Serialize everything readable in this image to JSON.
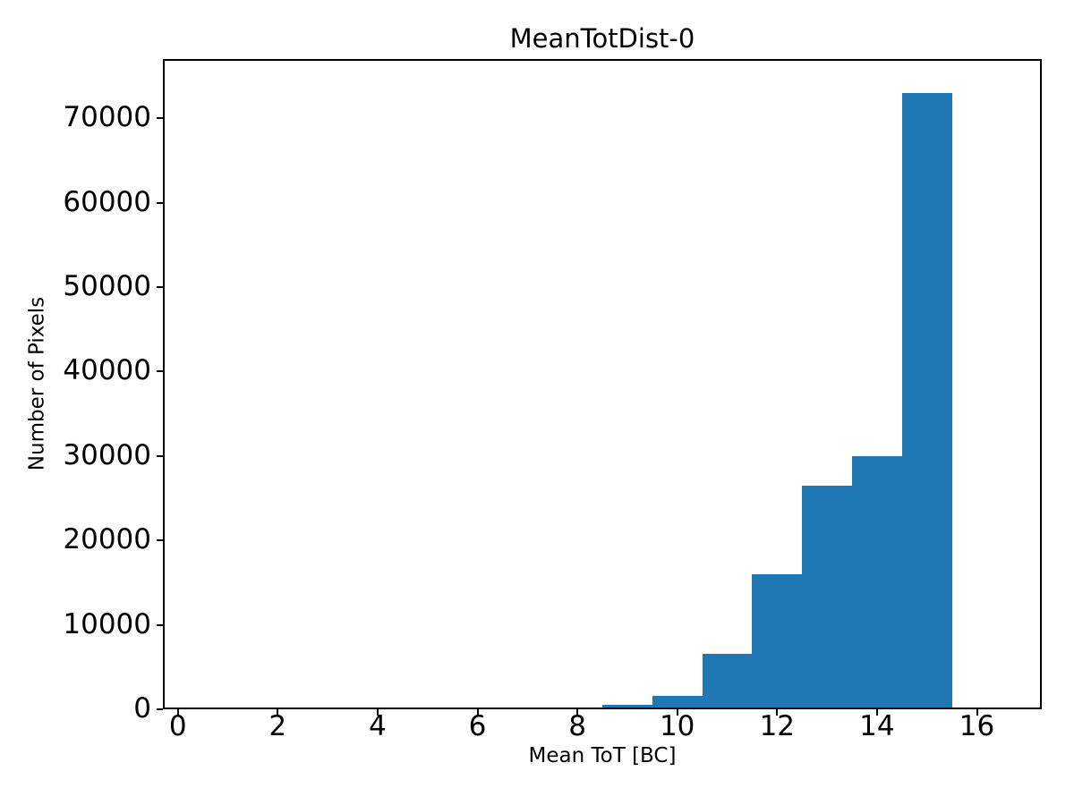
{
  "chart_data": {
    "type": "bar",
    "subtype": "histogram",
    "title": "MeanTotDist-0",
    "xlabel": "Mean ToT [BC]",
    "ylabel": "Number of Pixels",
    "bin_width": 1,
    "bin_centers": [
      9,
      10,
      11,
      12,
      13,
      14,
      15
    ],
    "values": [
      500,
      1600,
      6600,
      16000,
      26500,
      30000,
      73000
    ],
    "xticks": [
      0,
      2,
      4,
      6,
      8,
      10,
      12,
      14,
      16
    ],
    "yticks": [
      0,
      10000,
      20000,
      30000,
      40000,
      50000,
      60000,
      70000
    ],
    "xlim": [
      -0.3,
      17.3
    ],
    "ylim": [
      0,
      77000
    ],
    "grid": false,
    "legend_position": "none",
    "bar_color": "#1f77b4",
    "axis_color": "#000000",
    "background_color": "#ffffff"
  }
}
